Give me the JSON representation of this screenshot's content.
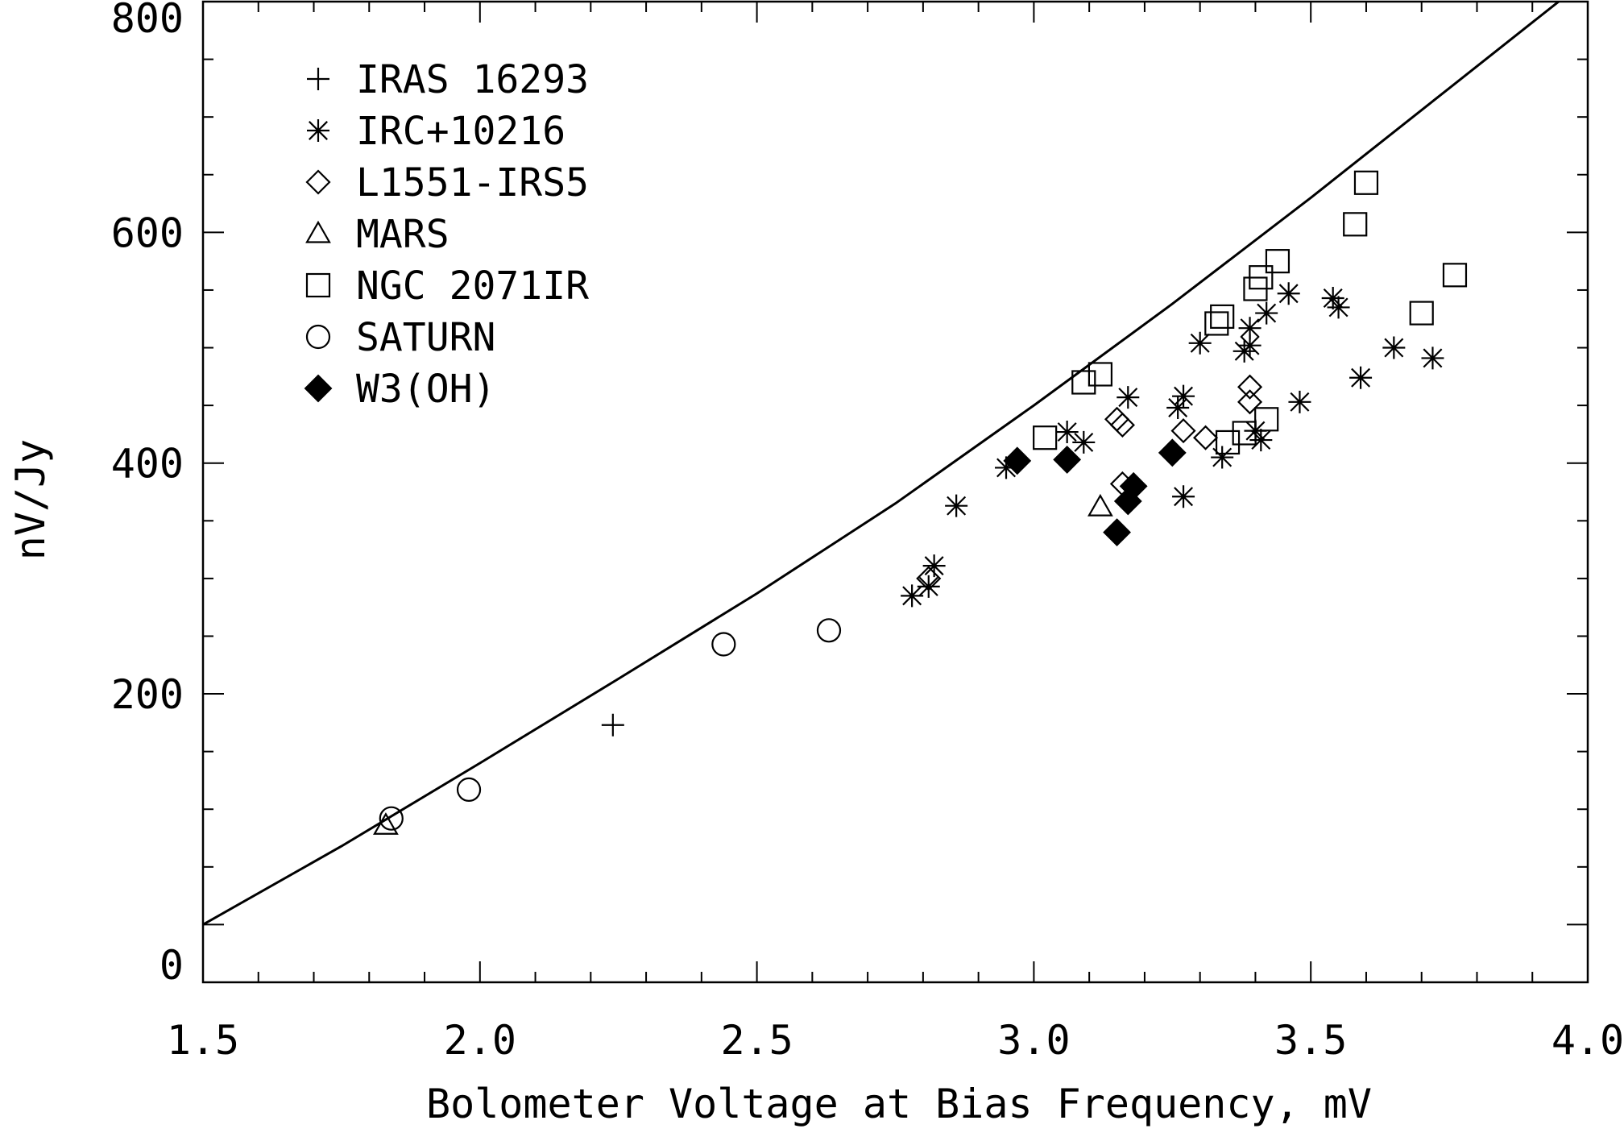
{
  "chart_data": {
    "type": "scatter",
    "xlabel": "Bolometer Voltage at Bias Frequency, mV",
    "ylabel": "nV/Jy",
    "xlim": [
      1.5,
      4.0
    ],
    "ylim": [
      -50,
      800
    ],
    "x_ticks": [
      "1.5",
      "2.0",
      "2.5",
      "3.0",
      "3.5",
      "4.0"
    ],
    "y_ticks": [
      "0",
      "200",
      "400",
      "600",
      "800"
    ],
    "legend_position": "top-left",
    "fit_curve": {
      "x": [
        1.5,
        1.75,
        2.0,
        2.25,
        2.5,
        2.75,
        3.0,
        3.25,
        3.5,
        3.75,
        4.0
      ],
      "y": [
        0,
        68,
        140,
        213,
        287,
        365,
        450,
        538,
        630,
        725,
        820
      ]
    },
    "series": [
      {
        "name": "IRAS 16293",
        "marker": "plus",
        "points": [
          [
            2.24,
            173
          ]
        ]
      },
      {
        "name": "IRC+10216",
        "marker": "asterisk",
        "points": [
          [
            2.78,
            285
          ],
          [
            2.81,
            293
          ],
          [
            2.82,
            311
          ],
          [
            2.86,
            363
          ],
          [
            2.95,
            396
          ],
          [
            3.06,
            427
          ],
          [
            3.09,
            418
          ],
          [
            3.17,
            457
          ],
          [
            3.26,
            448
          ],
          [
            3.27,
            458
          ],
          [
            3.27,
            371
          ],
          [
            3.3,
            504
          ],
          [
            3.34,
            405
          ],
          [
            3.38,
            497
          ],
          [
            3.39,
            517
          ],
          [
            3.39,
            502
          ],
          [
            3.4,
            428
          ],
          [
            3.41,
            420
          ],
          [
            3.42,
            530
          ],
          [
            3.46,
            547
          ],
          [
            3.48,
            453
          ],
          [
            3.54,
            543
          ],
          [
            3.55,
            535
          ],
          [
            3.59,
            474
          ],
          [
            3.65,
            500
          ],
          [
            3.72,
            491
          ]
        ]
      },
      {
        "name": "L1551-IRS5",
        "marker": "diamond",
        "points": [
          [
            2.81,
            300
          ],
          [
            3.15,
            438
          ],
          [
            3.16,
            433
          ],
          [
            3.16,
            382
          ],
          [
            3.27,
            428
          ],
          [
            3.31,
            422
          ],
          [
            3.39,
            466
          ],
          [
            3.39,
            453
          ]
        ]
      },
      {
        "name": "MARS",
        "marker": "triangle",
        "points": [
          [
            1.83,
            86
          ],
          [
            3.12,
            362
          ]
        ]
      },
      {
        "name": "NGC 2071IR",
        "marker": "square",
        "points": [
          [
            3.02,
            422
          ],
          [
            3.09,
            470
          ],
          [
            3.12,
            477
          ],
          [
            3.33,
            521
          ],
          [
            3.34,
            527
          ],
          [
            3.35,
            418
          ],
          [
            3.38,
            426
          ],
          [
            3.4,
            551
          ],
          [
            3.41,
            561
          ],
          [
            3.42,
            438
          ],
          [
            3.44,
            575
          ],
          [
            3.58,
            607
          ],
          [
            3.6,
            643
          ],
          [
            3.7,
            530
          ],
          [
            3.76,
            563
          ]
        ]
      },
      {
        "name": "SATURN",
        "marker": "circle",
        "points": [
          [
            1.84,
            92
          ],
          [
            1.98,
            117
          ],
          [
            2.44,
            243
          ],
          [
            2.63,
            255
          ]
        ]
      },
      {
        "name": "W3(OH)",
        "marker": "filled-diamond",
        "points": [
          [
            2.97,
            402
          ],
          [
            3.06,
            403
          ],
          [
            3.15,
            340
          ],
          [
            3.17,
            367
          ],
          [
            3.18,
            380
          ],
          [
            3.25,
            409
          ]
        ]
      }
    ]
  }
}
